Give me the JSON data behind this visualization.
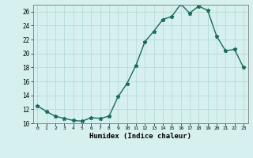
{
  "x": [
    0,
    1,
    2,
    3,
    4,
    5,
    6,
    7,
    8,
    9,
    10,
    11,
    12,
    13,
    14,
    15,
    16,
    17,
    18,
    19,
    20,
    21,
    22,
    23
  ],
  "y": [
    12.5,
    11.7,
    11.0,
    10.7,
    10.4,
    10.3,
    10.8,
    10.7,
    11.0,
    13.8,
    15.7,
    18.3,
    21.7,
    23.2,
    24.9,
    25.3,
    27.1,
    25.8,
    26.8,
    26.2,
    22.5,
    20.4,
    20.6,
    18.0
  ],
  "line_color": "#1a6b5a",
  "marker": "*",
  "bg_color": "#d5f0ee",
  "grid_color": "#b0d8d4",
  "xlabel": "Humidex (Indice chaleur)",
  "ylim": [
    10,
    27
  ],
  "xlim": [
    -0.5,
    23.5
  ],
  "yticks": [
    10,
    12,
    14,
    16,
    18,
    20,
    22,
    24,
    26
  ],
  "xticks": [
    0,
    1,
    2,
    3,
    4,
    5,
    6,
    7,
    8,
    9,
    10,
    11,
    12,
    13,
    14,
    15,
    16,
    17,
    18,
    19,
    20,
    21,
    22,
    23
  ]
}
